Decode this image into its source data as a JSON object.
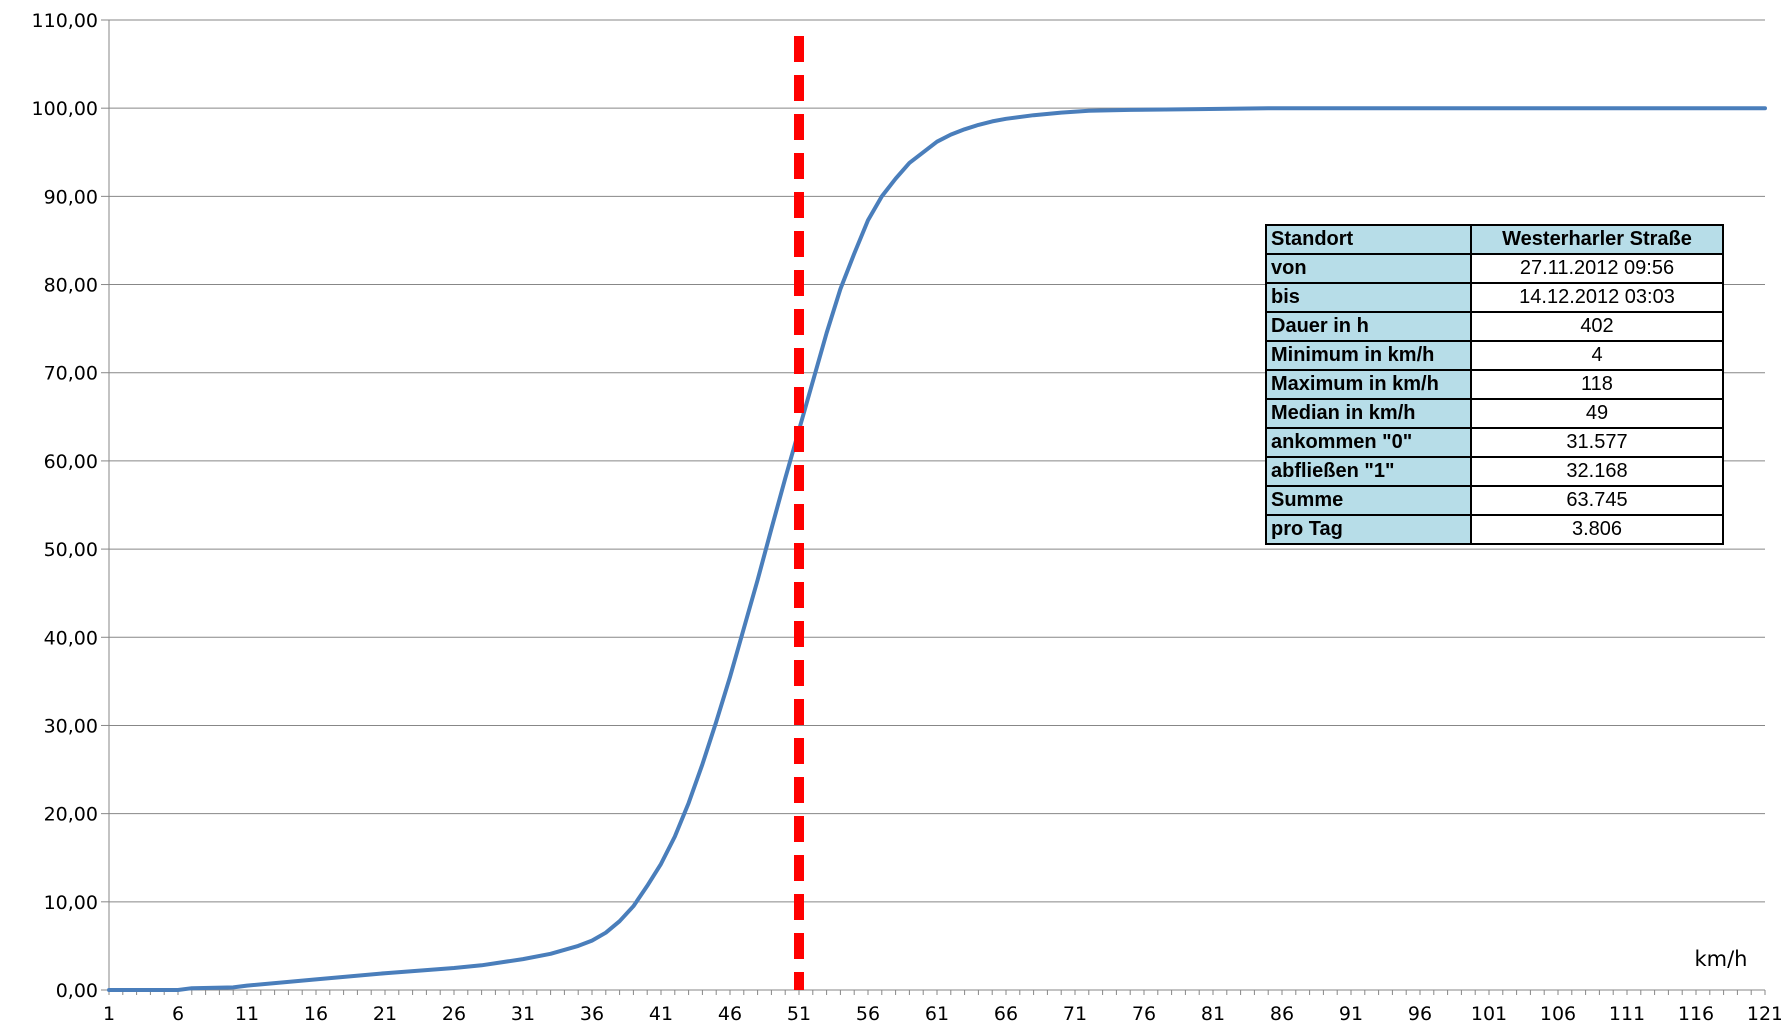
{
  "chart_data": {
    "type": "line",
    "x_label": "km/h",
    "y_ticks": [
      "0,00",
      "10,00",
      "20,00",
      "30,00",
      "40,00",
      "50,00",
      "60,00",
      "70,00",
      "80,00",
      "90,00",
      "100,00",
      "110,00"
    ],
    "x_ticks": [
      "1",
      "6",
      "11",
      "16",
      "21",
      "26",
      "31",
      "36",
      "41",
      "46",
      "51",
      "56",
      "61",
      "66",
      "71",
      "76",
      "81",
      "86",
      "91",
      "96",
      "101",
      "106",
      "111",
      "116",
      "121"
    ],
    "xlim": [
      1,
      121
    ],
    "ylim": [
      0,
      110
    ],
    "grid": "horizontal",
    "series": [
      {
        "color": "#4a7ebb",
        "points": [
          [
            1,
            0
          ],
          [
            6,
            0
          ],
          [
            7,
            0.2
          ],
          [
            10,
            0.3
          ],
          [
            11,
            0.5
          ],
          [
            16,
            1.2
          ],
          [
            21,
            1.9
          ],
          [
            26,
            2.5
          ],
          [
            28,
            2.8
          ],
          [
            31,
            3.5
          ],
          [
            33,
            4.1
          ],
          [
            35,
            5.0
          ],
          [
            36,
            5.6
          ],
          [
            37,
            6.5
          ],
          [
            38,
            7.8
          ],
          [
            39,
            9.5
          ],
          [
            40,
            11.8
          ],
          [
            41,
            14.3
          ],
          [
            42,
            17.4
          ],
          [
            43,
            21.2
          ],
          [
            44,
            25.6
          ],
          [
            45,
            30.4
          ],
          [
            46,
            35.5
          ],
          [
            47,
            41.0
          ],
          [
            48,
            46.5
          ],
          [
            49,
            52.3
          ],
          [
            50,
            58.0
          ],
          [
            51,
            63.5
          ],
          [
            52,
            69.0
          ],
          [
            53,
            74.5
          ],
          [
            54,
            79.5
          ],
          [
            55,
            83.5
          ],
          [
            56,
            87.3
          ],
          [
            57,
            90.0
          ],
          [
            58,
            92.0
          ],
          [
            59,
            93.8
          ],
          [
            60,
            95.0
          ],
          [
            61,
            96.2
          ],
          [
            62,
            97.0
          ],
          [
            63,
            97.6
          ],
          [
            64,
            98.1
          ],
          [
            65,
            98.5
          ],
          [
            66,
            98.8
          ],
          [
            68,
            99.2
          ],
          [
            70,
            99.5
          ],
          [
            72,
            99.7
          ],
          [
            75,
            99.8
          ],
          [
            80,
            99.9
          ],
          [
            85,
            100
          ],
          [
            121,
            100
          ]
        ]
      }
    ],
    "reference_line": {
      "x": 51,
      "color": "#ff0000",
      "style": "dashed"
    }
  },
  "info_table": [
    {
      "key": "Standort",
      "value": "Westerharler Straße"
    },
    {
      "key": "von",
      "value": "27.11.2012 09:56"
    },
    {
      "key": "bis",
      "value": "14.12.2012 03:03"
    },
    {
      "key": "Dauer in h",
      "value": "402"
    },
    {
      "key": "Minimum in km/h",
      "value": "4"
    },
    {
      "key": "Maximum in km/h",
      "value": "118"
    },
    {
      "key": "Median in km/h",
      "value": "49"
    },
    {
      "key": "ankommen \"0\"",
      "value": "31.577"
    },
    {
      "key": "abfließen \"1\"",
      "value": "32.168"
    },
    {
      "key": "Summe",
      "value": "63.745"
    },
    {
      "key": "pro Tag",
      "value": "3.806"
    }
  ]
}
